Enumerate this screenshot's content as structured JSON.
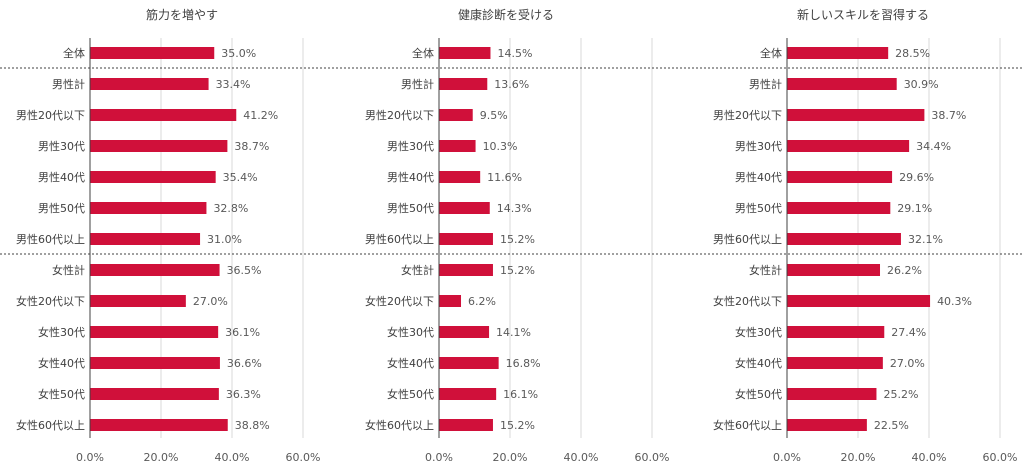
{
  "colors": {
    "bar": "#D0103A",
    "grid": "#D9D9D9",
    "axis": "#404040",
    "divider": "#404040"
  },
  "chart_data": [
    {
      "type": "bar",
      "orientation": "horizontal",
      "title": "筋力を増やす",
      "xlim": [
        0,
        60
      ],
      "ticks": [
        "0.0%",
        "20.0%",
        "40.0%",
        "60.0%"
      ],
      "tick_values": [
        0,
        20,
        40,
        60
      ],
      "categories": [
        "全体",
        "男性計",
        "男性20代以下",
        "男性30代",
        "男性40代",
        "男性50代",
        "男性60代以上",
        "女性計",
        "女性20代以下",
        "女性30代",
        "女性40代",
        "女性50代",
        "女性60代以上"
      ],
      "values": [
        35.0,
        33.4,
        41.2,
        38.7,
        35.4,
        32.8,
        31.0,
        36.5,
        27.0,
        36.1,
        36.6,
        36.3,
        38.8
      ],
      "labels": [
        "35.0%",
        "33.4%",
        "41.2%",
        "38.7%",
        "35.4%",
        "32.8%",
        "31.0%",
        "36.5%",
        "27.0%",
        "36.1%",
        "36.6%",
        "36.3%",
        "38.8%"
      ]
    },
    {
      "type": "bar",
      "orientation": "horizontal",
      "title": "健康診断を受ける",
      "xlim": [
        0,
        60
      ],
      "ticks": [
        "0.0%",
        "20.0%",
        "40.0%",
        "60.0%"
      ],
      "tick_values": [
        0,
        20,
        40,
        60
      ],
      "categories": [
        "全体",
        "男性計",
        "男性20代以下",
        "男性30代",
        "男性40代",
        "男性50代",
        "男性60代以上",
        "女性計",
        "女性20代以下",
        "女性30代",
        "女性40代",
        "女性50代",
        "女性60代以上"
      ],
      "values": [
        14.5,
        13.6,
        9.5,
        10.3,
        11.6,
        14.3,
        15.2,
        15.2,
        6.2,
        14.1,
        16.8,
        16.1,
        15.2
      ],
      "labels": [
        "14.5%",
        "13.6%",
        "9.5%",
        "10.3%",
        "11.6%",
        "14.3%",
        "15.2%",
        "15.2%",
        "6.2%",
        "14.1%",
        "16.8%",
        "16.1%",
        "15.2%"
      ]
    },
    {
      "type": "bar",
      "orientation": "horizontal",
      "title": "新しいスキルを習得する",
      "xlim": [
        0,
        60
      ],
      "ticks": [
        "0.0%",
        "20.0%",
        "40.0%",
        "60.0%"
      ],
      "tick_values": [
        0,
        20,
        40,
        60
      ],
      "categories": [
        "全体",
        "男性計",
        "男性20代以下",
        "男性30代",
        "男性40代",
        "男性50代",
        "男性60代以上",
        "女性計",
        "女性20代以下",
        "女性30代",
        "女性40代",
        "女性50代",
        "女性60代以上"
      ],
      "values": [
        28.5,
        30.9,
        38.7,
        34.4,
        29.6,
        29.1,
        32.1,
        26.2,
        40.3,
        27.4,
        27.0,
        25.2,
        22.5
      ],
      "labels": [
        "28.5%",
        "30.9%",
        "38.7%",
        "34.4%",
        "29.6%",
        "29.1%",
        "32.1%",
        "26.2%",
        "40.3%",
        "27.4%",
        "27.0%",
        "25.2%",
        "22.5%"
      ]
    }
  ]
}
